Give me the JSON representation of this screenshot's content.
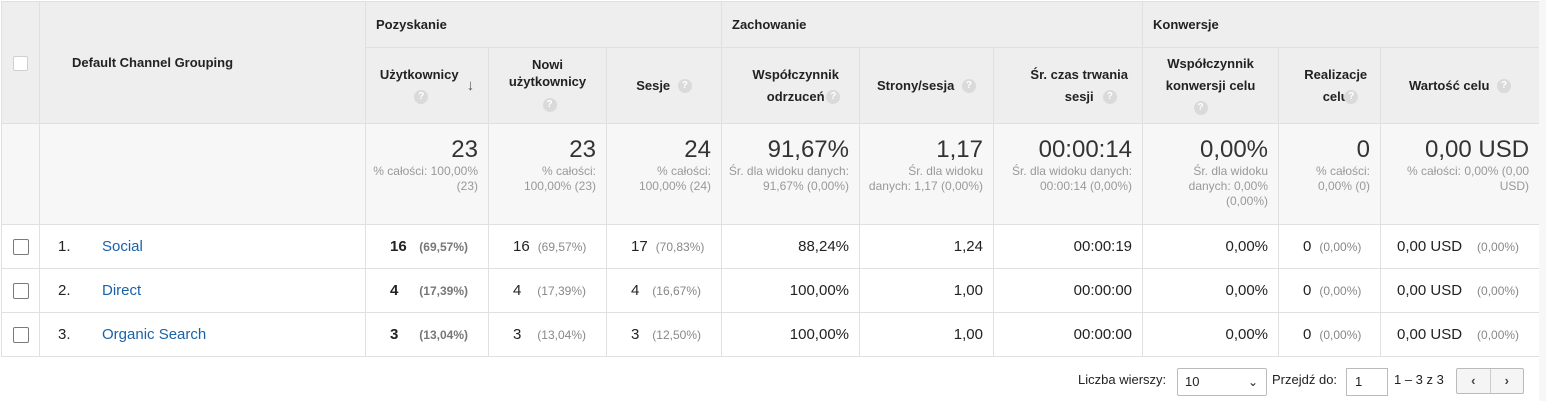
{
  "groups": {
    "acquisition": "Pozyskanie",
    "behavior": "Zachowanie",
    "conversions": "Konwersje"
  },
  "dimension_header": "Default Channel Grouping",
  "help_glyph": "?",
  "sort_glyph": "↓",
  "metrics": {
    "users": "Użytkownicy",
    "new_users": "Nowi użytkownicy",
    "sessions": "Sesje",
    "bounce_rate": "Współczynnik odrzuceń",
    "pages_session": "Strony/sesja",
    "avg_duration": "Śr. czas trwania sesji",
    "conv_rate": "Współczynnik konwersji celu",
    "goal_completions": "Realizacje celu",
    "goal_value": "Wartość celu"
  },
  "summary": {
    "users": {
      "value": "23",
      "sub": "% całości: 100,00% (23)"
    },
    "new_users": {
      "value": "23",
      "sub": "% całości: 100,00% (23)"
    },
    "sessions": {
      "value": "24",
      "sub": "% całości: 100,00% (24)"
    },
    "bounce_rate": {
      "value": "91,67%",
      "sub": "Śr. dla widoku danych: 91,67% (0,00%)"
    },
    "pages_session": {
      "value": "1,17",
      "sub": "Śr. dla widoku danych: 1,17 (0,00%)"
    },
    "avg_duration": {
      "value": "00:00:14",
      "sub": "Śr. dla widoku danych: 00:00:14 (0,00%)"
    },
    "conv_rate": {
      "value": "0,00%",
      "sub": "Śr. dla widoku danych: 0,00% (0,00%)"
    },
    "goal_completions": {
      "value": "0",
      "sub": "% całości: 0,00% (0)"
    },
    "goal_value": {
      "value": "0,00 USD",
      "sub": "% całości: 0,00% (0,00 USD)"
    }
  },
  "rows": [
    {
      "idx": "1.",
      "channel": "Social",
      "users": "16",
      "users_pct": "(69,57%)",
      "new_users": "16",
      "new_users_pct": "(69,57%)",
      "sessions": "17",
      "sessions_pct": "(70,83%)",
      "bounce_rate": "88,24%",
      "pages_session": "1,24",
      "avg_duration": "00:00:19",
      "conv_rate": "0,00%",
      "goal_completions": "0",
      "goal_completions_pct": "(0,00%)",
      "goal_value": "0,00 USD",
      "goal_value_pct": "(0,00%)"
    },
    {
      "idx": "2.",
      "channel": "Direct",
      "users": "4",
      "users_pct": "(17,39%)",
      "new_users": "4",
      "new_users_pct": "(17,39%)",
      "sessions": "4",
      "sessions_pct": "(16,67%)",
      "bounce_rate": "100,00%",
      "pages_session": "1,00",
      "avg_duration": "00:00:00",
      "conv_rate": "0,00%",
      "goal_completions": "0",
      "goal_completions_pct": "(0,00%)",
      "goal_value": "0,00 USD",
      "goal_value_pct": "(0,00%)"
    },
    {
      "idx": "3.",
      "channel": "Organic Search",
      "users": "3",
      "users_pct": "(13,04%)",
      "new_users": "3",
      "new_users_pct": "(13,04%)",
      "sessions": "3",
      "sessions_pct": "(12,50%)",
      "bounce_rate": "100,00%",
      "pages_session": "1,00",
      "avg_duration": "00:00:00",
      "conv_rate": "0,00%",
      "goal_completions": "0",
      "goal_completions_pct": "(0,00%)",
      "goal_value": "0,00 USD",
      "goal_value_pct": "(0,00%)"
    }
  ],
  "footer": {
    "rows_label": "Liczba wierszy:",
    "rows_value": "10",
    "goto_label": "Przejdź do:",
    "goto_value": "1",
    "range": "1 – 3 z 3",
    "prev": "‹",
    "next": "›"
  },
  "colors": {
    "link": "#1a62a8",
    "header_bg": "#eeeeee",
    "summary_bg": "#f7f7f7"
  }
}
